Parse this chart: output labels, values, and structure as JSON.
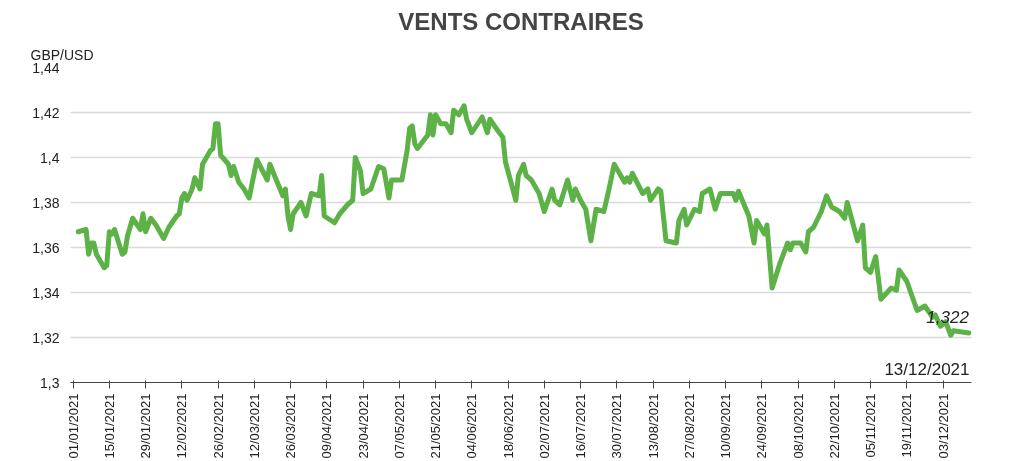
{
  "chart_data": {
    "type": "line",
    "title": "VENTS CONTRAIRES",
    "ylabel": "GBP/USD",
    "x": [
      "2021-01-03",
      "2021-01-06",
      "2021-01-07",
      "2021-01-08",
      "2021-01-09",
      "2021-01-10",
      "2021-01-13",
      "2021-01-14",
      "2021-01-15",
      "2021-01-16",
      "2021-01-17",
      "2021-01-20",
      "2021-01-21",
      "2021-01-22",
      "2021-01-24",
      "2021-01-27",
      "2021-01-28",
      "2021-01-29",
      "2021-01-31",
      "2021-02-02",
      "2021-02-05",
      "2021-02-07",
      "2021-02-10",
      "2021-02-11",
      "2021-02-12",
      "2021-02-13",
      "2021-02-14",
      "2021-02-16",
      "2021-02-17",
      "2021-02-19",
      "2021-02-20",
      "2021-02-23",
      "2021-02-24",
      "2021-02-25",
      "2021-02-26",
      "2021-02-27",
      "2021-03-02",
      "2021-03-03",
      "2021-03-04",
      "2021-03-06",
      "2021-03-08",
      "2021-03-10",
      "2021-03-13",
      "2021-03-17",
      "2021-03-18",
      "2021-03-23",
      "2021-03-24",
      "2021-03-25",
      "2021-03-26",
      "2021-03-27",
      "2021-03-30",
      "2021-04-01",
      "2021-04-03",
      "2021-04-06",
      "2021-04-07",
      "2021-04-08",
      "2021-04-12",
      "2021-04-14",
      "2021-04-17",
      "2021-04-19",
      "2021-04-20",
      "2021-04-22",
      "2021-04-23",
      "2021-04-26",
      "2021-04-29",
      "2021-05-01",
      "2021-05-03",
      "2021-05-04",
      "2021-05-06",
      "2021-05-08",
      "2021-05-10",
      "2021-05-11",
      "2021-05-12",
      "2021-05-13",
      "2021-05-14",
      "2021-05-18",
      "2021-05-19",
      "2021-05-20",
      "2021-05-21",
      "2021-05-23",
      "2021-05-25",
      "2021-05-27",
      "2021-05-28",
      "2021-05-30",
      "2021-06-01",
      "2021-06-02",
      "2021-06-04",
      "2021-06-08",
      "2021-06-10",
      "2021-06-11",
      "2021-06-14",
      "2021-06-16",
      "2021-06-17",
      "2021-06-21",
      "2021-06-22",
      "2021-06-24",
      "2021-06-25",
      "2021-06-27",
      "2021-06-30",
      "2021-07-02",
      "2021-07-05",
      "2021-07-06",
      "2021-07-08",
      "2021-07-11",
      "2021-07-13",
      "2021-07-14",
      "2021-07-16",
      "2021-07-18",
      "2021-07-20",
      "2021-07-22",
      "2021-07-25",
      "2021-07-27",
      "2021-07-29",
      "2021-08-02",
      "2021-08-03",
      "2021-08-04",
      "2021-08-05",
      "2021-08-09",
      "2021-08-11",
      "2021-08-12",
      "2021-08-15",
      "2021-08-16",
      "2021-08-17",
      "2021-08-18",
      "2021-08-22",
      "2021-08-23",
      "2021-08-25",
      "2021-08-26",
      "2021-08-29",
      "2021-08-31",
      "2021-09-01",
      "2021-09-04",
      "2021-09-06",
      "2021-09-08",
      "2021-09-13",
      "2021-09-14",
      "2021-09-15",
      "2021-09-19",
      "2021-09-21",
      "2021-09-22",
      "2021-09-25",
      "2021-09-26",
      "2021-09-28",
      "2021-10-01",
      "2021-10-04",
      "2021-10-05",
      "2021-10-06",
      "2021-10-09",
      "2021-10-11",
      "2021-10-12",
      "2021-10-14",
      "2021-10-17",
      "2021-10-19",
      "2021-10-21",
      "2021-10-24",
      "2021-10-26",
      "2021-10-27",
      "2021-10-31",
      "2021-11-02",
      "2021-11-03",
      "2021-11-05",
      "2021-11-07",
      "2021-11-09",
      "2021-11-13",
      "2021-11-15",
      "2021-11-16",
      "2021-11-19",
      "2021-11-23",
      "2021-11-26",
      "2021-11-29",
      "2021-11-30",
      "2021-12-02",
      "2021-12-04",
      "2021-12-06",
      "2021-12-07",
      "2021-12-13"
    ],
    "series": [
      {
        "color": "#5cb247",
        "values": [
          1.367,
          1.368,
          1.357,
          1.362,
          1.362,
          1.357,
          1.351,
          1.352,
          1.367,
          1.366,
          1.368,
          1.357,
          1.358,
          1.365,
          1.373,
          1.368,
          1.375,
          1.367,
          1.373,
          1.37,
          1.364,
          1.369,
          1.374,
          1.375,
          1.382,
          1.384,
          1.381,
          1.386,
          1.391,
          1.386,
          1.397,
          1.403,
          1.404,
          1.415,
          1.415,
          1.401,
          1.397,
          1.392,
          1.396,
          1.389,
          1.386,
          1.382,
          1.399,
          1.39,
          1.397,
          1.383,
          1.386,
          1.374,
          1.368,
          1.375,
          1.38,
          1.374,
          1.384,
          1.383,
          1.392,
          1.374,
          1.371,
          1.375,
          1.379,
          1.381,
          1.4,
          1.394,
          1.384,
          1.386,
          1.396,
          1.395,
          1.382,
          1.39,
          1.39,
          1.39,
          1.403,
          1.413,
          1.414,
          1.406,
          1.404,
          1.41,
          1.419,
          1.41,
          1.419,
          1.415,
          1.415,
          1.411,
          1.421,
          1.419,
          1.423,
          1.417,
          1.411,
          1.418,
          1.411,
          1.417,
          1.412,
          1.409,
          1.398,
          1.381,
          1.392,
          1.397,
          1.392,
          1.39,
          1.384,
          1.376,
          1.386,
          1.381,
          1.379,
          1.39,
          1.381,
          1.386,
          1.381,
          1.377,
          1.363,
          1.377,
          1.376,
          1.386,
          1.397,
          1.389,
          1.391,
          1.389,
          1.393,
          1.384,
          1.386,
          1.381,
          1.386,
          1.385,
          1.374,
          1.363,
          1.362,
          1.372,
          1.377,
          1.37,
          1.377,
          1.376,
          1.384,
          1.386,
          1.377,
          1.384,
          1.384,
          1.381,
          1.385,
          1.374,
          1.362,
          1.372,
          1.366,
          1.37,
          1.342,
          1.353,
          1.362,
          1.359,
          1.362,
          1.362,
          1.358,
          1.367,
          1.369,
          1.376,
          1.383,
          1.378,
          1.376,
          1.373,
          1.38,
          1.363,
          1.37,
          1.351,
          1.349,
          1.356,
          1.337,
          1.342,
          1.341,
          1.35,
          1.345,
          1.332,
          1.334,
          1.329,
          1.33,
          1.325,
          1.327,
          1.321,
          1.323,
          1.322
        ]
      }
    ],
    "xlim": [
      "2021-01-01",
      "2021-12-13"
    ],
    "xticks": [
      {
        "value": "2021-01-01",
        "label": "01/01/2021"
      },
      {
        "value": "2021-01-15",
        "label": "15/01/2021"
      },
      {
        "value": "2021-01-29",
        "label": "29/01/2021"
      },
      {
        "value": "2021-02-12",
        "label": "12/02/2021"
      },
      {
        "value": "2021-02-26",
        "label": "26/02/2021"
      },
      {
        "value": "2021-03-12",
        "label": "12/03/2021"
      },
      {
        "value": "2021-03-26",
        "label": "26/03/2021"
      },
      {
        "value": "2021-04-09",
        "label": "09/04/2021"
      },
      {
        "value": "2021-04-23",
        "label": "23/04/2021"
      },
      {
        "value": "2021-05-07",
        "label": "07/05/2021"
      },
      {
        "value": "2021-05-21",
        "label": "21/05/2021"
      },
      {
        "value": "2021-06-04",
        "label": "04/06/2021"
      },
      {
        "value": "2021-06-18",
        "label": "18/06/2021"
      },
      {
        "value": "2021-07-02",
        "label": "02/07/2021"
      },
      {
        "value": "2021-07-16",
        "label": "16/07/2021"
      },
      {
        "value": "2021-07-30",
        "label": "30/07/2021"
      },
      {
        "value": "2021-08-13",
        "label": "13/08/2021"
      },
      {
        "value": "2021-08-27",
        "label": "27/08/2021"
      },
      {
        "value": "2021-09-10",
        "label": "10/09/2021"
      },
      {
        "value": "2021-09-24",
        "label": "24/09/2021"
      },
      {
        "value": "2021-10-08",
        "label": "08/10/2021"
      },
      {
        "value": "2021-10-22",
        "label": "22/10/2021"
      },
      {
        "value": "2021-11-05",
        "label": "05/11/2021"
      },
      {
        "value": "2021-11-19",
        "label": "19/11/2021"
      },
      {
        "value": "2021-12-03",
        "label": "03/12/2021"
      }
    ],
    "ylim": [
      1.3,
      1.44
    ],
    "yticks": [
      {
        "value": 1.3,
        "label": "1,3"
      },
      {
        "value": 1.32,
        "label": "1,32"
      },
      {
        "value": 1.34,
        "label": "1,34"
      },
      {
        "value": 1.36,
        "label": "1,36"
      },
      {
        "value": 1.38,
        "label": "1,38"
      },
      {
        "value": 1.4,
        "label": "1,4"
      },
      {
        "value": 1.42,
        "label": "1,42"
      },
      {
        "value": 1.44,
        "label": "1,44"
      }
    ],
    "grid": "y",
    "marker": "none",
    "line_style": "solid",
    "annotations": [
      {
        "text": "1,322",
        "x": "2021-12-13",
        "y": 1.322
      },
      "13/12/2021"
    ]
  }
}
